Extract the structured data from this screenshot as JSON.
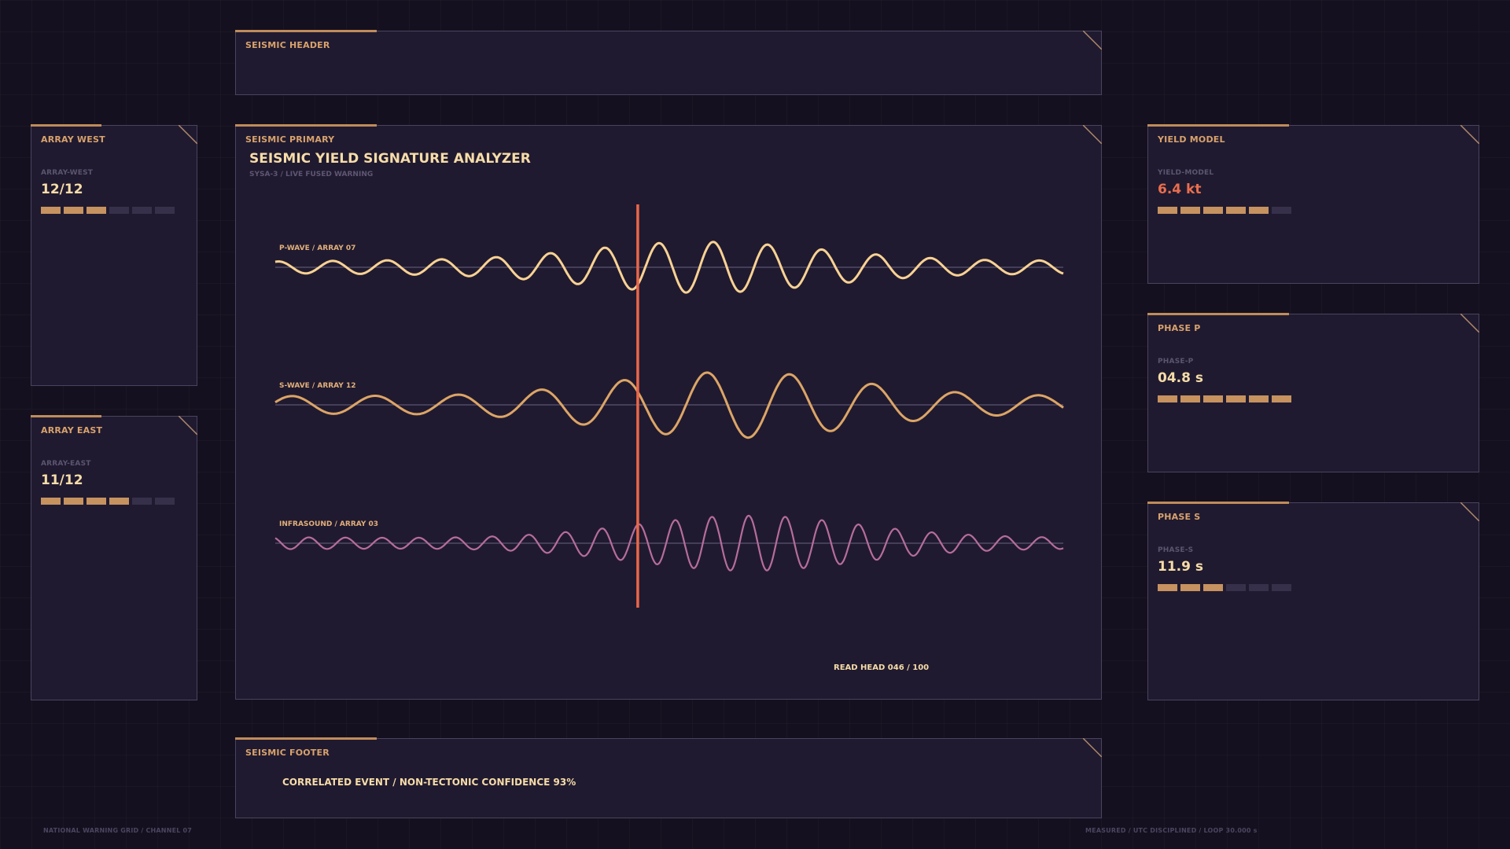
{
  "header": {
    "label": "SEISMIC HEADER"
  },
  "primary": {
    "label": "SEISMIC PRIMARY",
    "title": "SEISMIC YIELD SIGNATURE ANALYZER",
    "subtitle": "SYSA-3 / LIVE FUSED WARNING",
    "read_head": "READ HEAD 046 / 100",
    "read_head_fraction": 0.46,
    "traces": [
      {
        "label": "P-WAVE / ARRAY 07",
        "color": "#f9d293"
      },
      {
        "label": "S-WAVE / ARRAY 12",
        "color": "#dca566"
      },
      {
        "label": "INFRASOUND / ARRAY 03",
        "color": "#b66d9d"
      }
    ],
    "cursor_color": "#e8674a"
  },
  "footer": {
    "label": "SEISMIC FOOTER",
    "message": "CORRELATED EVENT / NON-TECTONIC CONFIDENCE 93%"
  },
  "left_panels": [
    {
      "title": "ARRAY WEST",
      "key": "ARRAY-WEST",
      "value": "12/12",
      "level": 3,
      "total": 6
    },
    {
      "title": "ARRAY EAST",
      "key": "ARRAY-EAST",
      "value": "11/12",
      "level": 4,
      "total": 6
    }
  ],
  "right_panels": [
    {
      "title": "YIELD MODEL",
      "key": "YIELD-MODEL",
      "value": "6.4 kt",
      "level": 5,
      "total": 6,
      "alert": true
    },
    {
      "title": "PHASE P",
      "key": "PHASE-P",
      "value": "04.8 s",
      "level": 6,
      "total": 6
    },
    {
      "title": "PHASE S",
      "key": "PHASE-S",
      "value": "11.9 s",
      "level": 3,
      "total": 6
    }
  ],
  "bottom_left": "NATIONAL WARNING GRID / CHANNEL 07",
  "bottom_right": "MEASURED / UTC DISCIPLINED / LOOP 30.000 s",
  "colors": {
    "accent": "#c08c5a",
    "value": "#f6dca8",
    "alert": "#ea6e4d",
    "panel": "#201a30"
  }
}
